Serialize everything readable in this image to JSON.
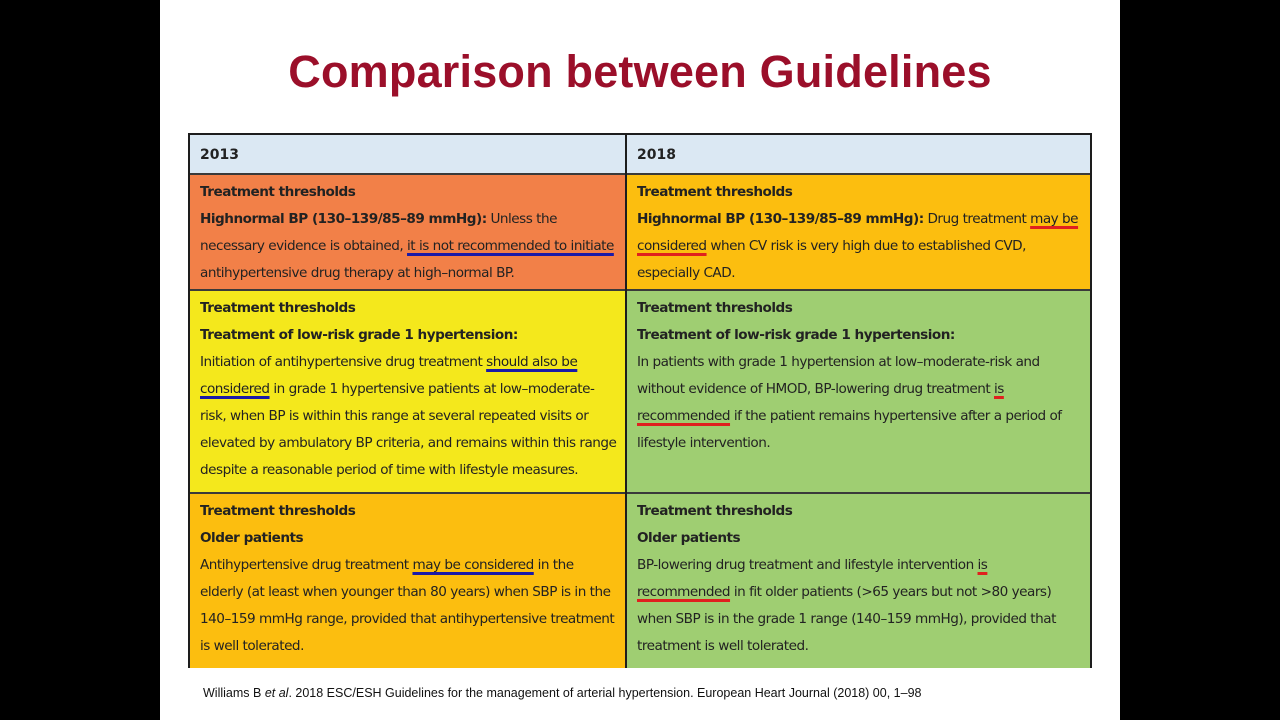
{
  "title": "Comparison between Guidelines",
  "columns": [
    "2013",
    "2018"
  ],
  "colors": {
    "header_bg": "#dbe8f3",
    "row1_2013": "#f28048",
    "row1_2018": "#fcbe0f",
    "row2_2013": "#f4e81c",
    "row2_2018": "#9fce72",
    "row3_2013": "#fcbe0f",
    "row3_2018": "#9fce72",
    "underline_2013": "#1a1aa8",
    "underline_2018": "#e0201e",
    "title": "#9b0f2a"
  },
  "rows": [
    {
      "c2013": {
        "heading": "Treatment thresholds",
        "bold_lead": "Highnormal BP (130–139/85–89 mmHg):",
        "pre": " Unless the necessary evidence is obtained, ",
        "underlined": "it is not recommended to initiate",
        "post": " antihypertensive drug therapy at high–normal BP."
      },
      "c2018": {
        "heading": "Treatment thresholds",
        "bold_lead": "Highnormal BP (130–139/85–89 mmHg):",
        "pre": " Drug treatment ",
        "underlined": "may be considered",
        "post": " when CV risk is very high due to established CVD, especially CAD."
      }
    },
    {
      "c2013": {
        "heading": "Treatment thresholds",
        "subheading": "Treatment of low-risk grade 1 hypertension:",
        "pre": "Initiation of antihypertensive drug treatment ",
        "underlined": "should also be considered",
        "post": " in grade 1 hypertensive patients at low–moderate-risk, when BP is within this range at several repeated visits or elevated by ambulatory BP criteria, and remains within this range despite a reasonable period of time with lifestyle measures."
      },
      "c2018": {
        "heading": "Treatment thresholds",
        "subheading": "Treatment of low-risk grade 1 hypertension:",
        "pre": "In patients with grade 1 hypertension at low–moderate-risk and without evidence of HMOD, BP-lowering drug treatment ",
        "underlined": "is recommended",
        "post": " if the patient remains hypertensive after a period of lifestyle intervention."
      }
    },
    {
      "c2013": {
        "heading": "Treatment thresholds",
        "subheading": "Older patients",
        "pre": "Antihypertensive drug treatment ",
        "underlined": "may be considered",
        "post": " in the elderly (at least when younger than 80 years) when SBP is in the 140–159 mmHg range, provided that antihypertensive treatment is well tolerated."
      },
      "c2018": {
        "heading": "Treatment thresholds",
        "subheading": "Older patients",
        "pre": "BP-lowering drug treatment and lifestyle intervention ",
        "underlined": "is recommended",
        "post": " in fit older patients (>65 years but not >80 years) when SBP is in the grade 1 range (140–159 mmHg), provided that treatment is well tolerated."
      }
    }
  ],
  "citation": {
    "authors": "Williams B ",
    "etal": "et al",
    "rest": ". 2018 ESC/ESH Guidelines for the management of arterial hypertension. European Heart Journal (2018) 00, 1–98"
  }
}
